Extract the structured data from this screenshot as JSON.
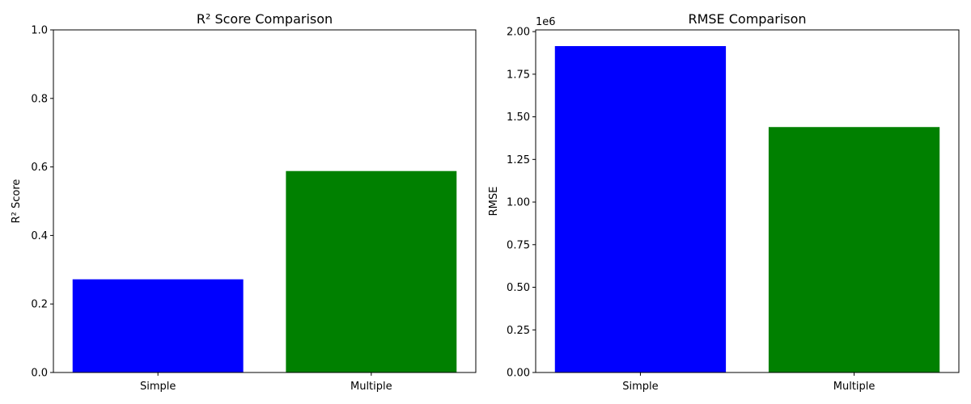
{
  "chart_data": [
    {
      "type": "bar",
      "title": "R² Score Comparison",
      "xlabel": "",
      "ylabel": "R² Score",
      "categories": [
        "Simple",
        "Multiple"
      ],
      "values": [
        0.272,
        0.588
      ],
      "colors": [
        "#0000ff",
        "#008000"
      ],
      "ylim": [
        0,
        1.0
      ],
      "yticks": [
        "0.0",
        "0.2",
        "0.4",
        "0.6",
        "0.8",
        "1.0"
      ],
      "ytick_values": [
        0,
        0.2,
        0.4,
        0.6,
        0.8,
        1.0
      ],
      "offset_label": "",
      "grid": false
    },
    {
      "type": "bar",
      "title": "RMSE Comparison",
      "xlabel": "",
      "ylabel": "RMSE",
      "categories": [
        "Simple",
        "Multiple"
      ],
      "values": [
        1915000,
        1440000
      ],
      "colors": [
        "#0000ff",
        "#008000"
      ],
      "ylim": [
        0,
        2010000
      ],
      "yticks": [
        "0.00",
        "0.25",
        "0.50",
        "0.75",
        "1.00",
        "1.25",
        "1.50",
        "1.75",
        "2.00"
      ],
      "ytick_values": [
        0,
        250000,
        500000,
        750000,
        1000000,
        1250000,
        1500000,
        1750000,
        2000000
      ],
      "offset_label": "1e6",
      "grid": false
    }
  ]
}
